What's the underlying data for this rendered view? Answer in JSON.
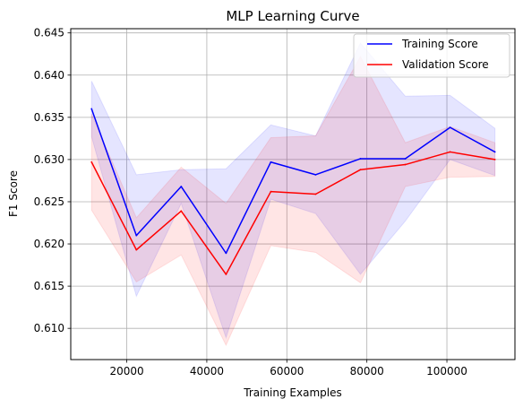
{
  "chart_data": {
    "type": "line",
    "title": "MLP Learning Curve",
    "xlabel": "Training Examples",
    "ylabel": "F1 Score",
    "xlim": [
      6000,
      117000
    ],
    "ylim": [
      0.6063,
      0.6455
    ],
    "xticks": [
      20000,
      40000,
      60000,
      80000,
      100000
    ],
    "xtick_labels": [
      "20000",
      "40000",
      "60000",
      "80000",
      "100000"
    ],
    "yticks": [
      0.61,
      0.615,
      0.62,
      0.625,
      0.63,
      0.635,
      0.64,
      0.645
    ],
    "ytick_labels": [
      "0.610",
      "0.615",
      "0.620",
      "0.625",
      "0.630",
      "0.635",
      "0.640",
      "0.645"
    ],
    "grid": true,
    "legend_position": "top-right",
    "x": [
      11200,
      22400,
      33600,
      44800,
      56000,
      67200,
      78400,
      89600,
      100800,
      112000
    ],
    "series": [
      {
        "name": "Training Score",
        "color": "#0000ff",
        "values": [
          0.636,
          0.621,
          0.6268,
          0.6189,
          0.6297,
          0.6282,
          0.6301,
          0.6301,
          0.6338,
          0.6309
        ],
        "band_upper": [
          0.6393,
          0.6282,
          0.6288,
          0.6289,
          0.6341,
          0.6328,
          0.6438,
          0.6375,
          0.6376,
          0.6337
        ],
        "band_lower": [
          0.6327,
          0.6138,
          0.6248,
          0.6089,
          0.6253,
          0.6236,
          0.6164,
          0.6227,
          0.63,
          0.6281
        ]
      },
      {
        "name": "Validation Score",
        "color": "#ff0000",
        "values": [
          0.6297,
          0.6193,
          0.6239,
          0.6164,
          0.6262,
          0.6259,
          0.6288,
          0.6294,
          0.6309,
          0.63
        ],
        "band_upper": [
          0.6354,
          0.6231,
          0.6291,
          0.6248,
          0.6326,
          0.6328,
          0.6422,
          0.632,
          0.6339,
          0.632
        ],
        "band_lower": [
          0.624,
          0.6155,
          0.6187,
          0.608,
          0.6198,
          0.619,
          0.6154,
          0.6268,
          0.6279,
          0.628
        ]
      }
    ]
  }
}
